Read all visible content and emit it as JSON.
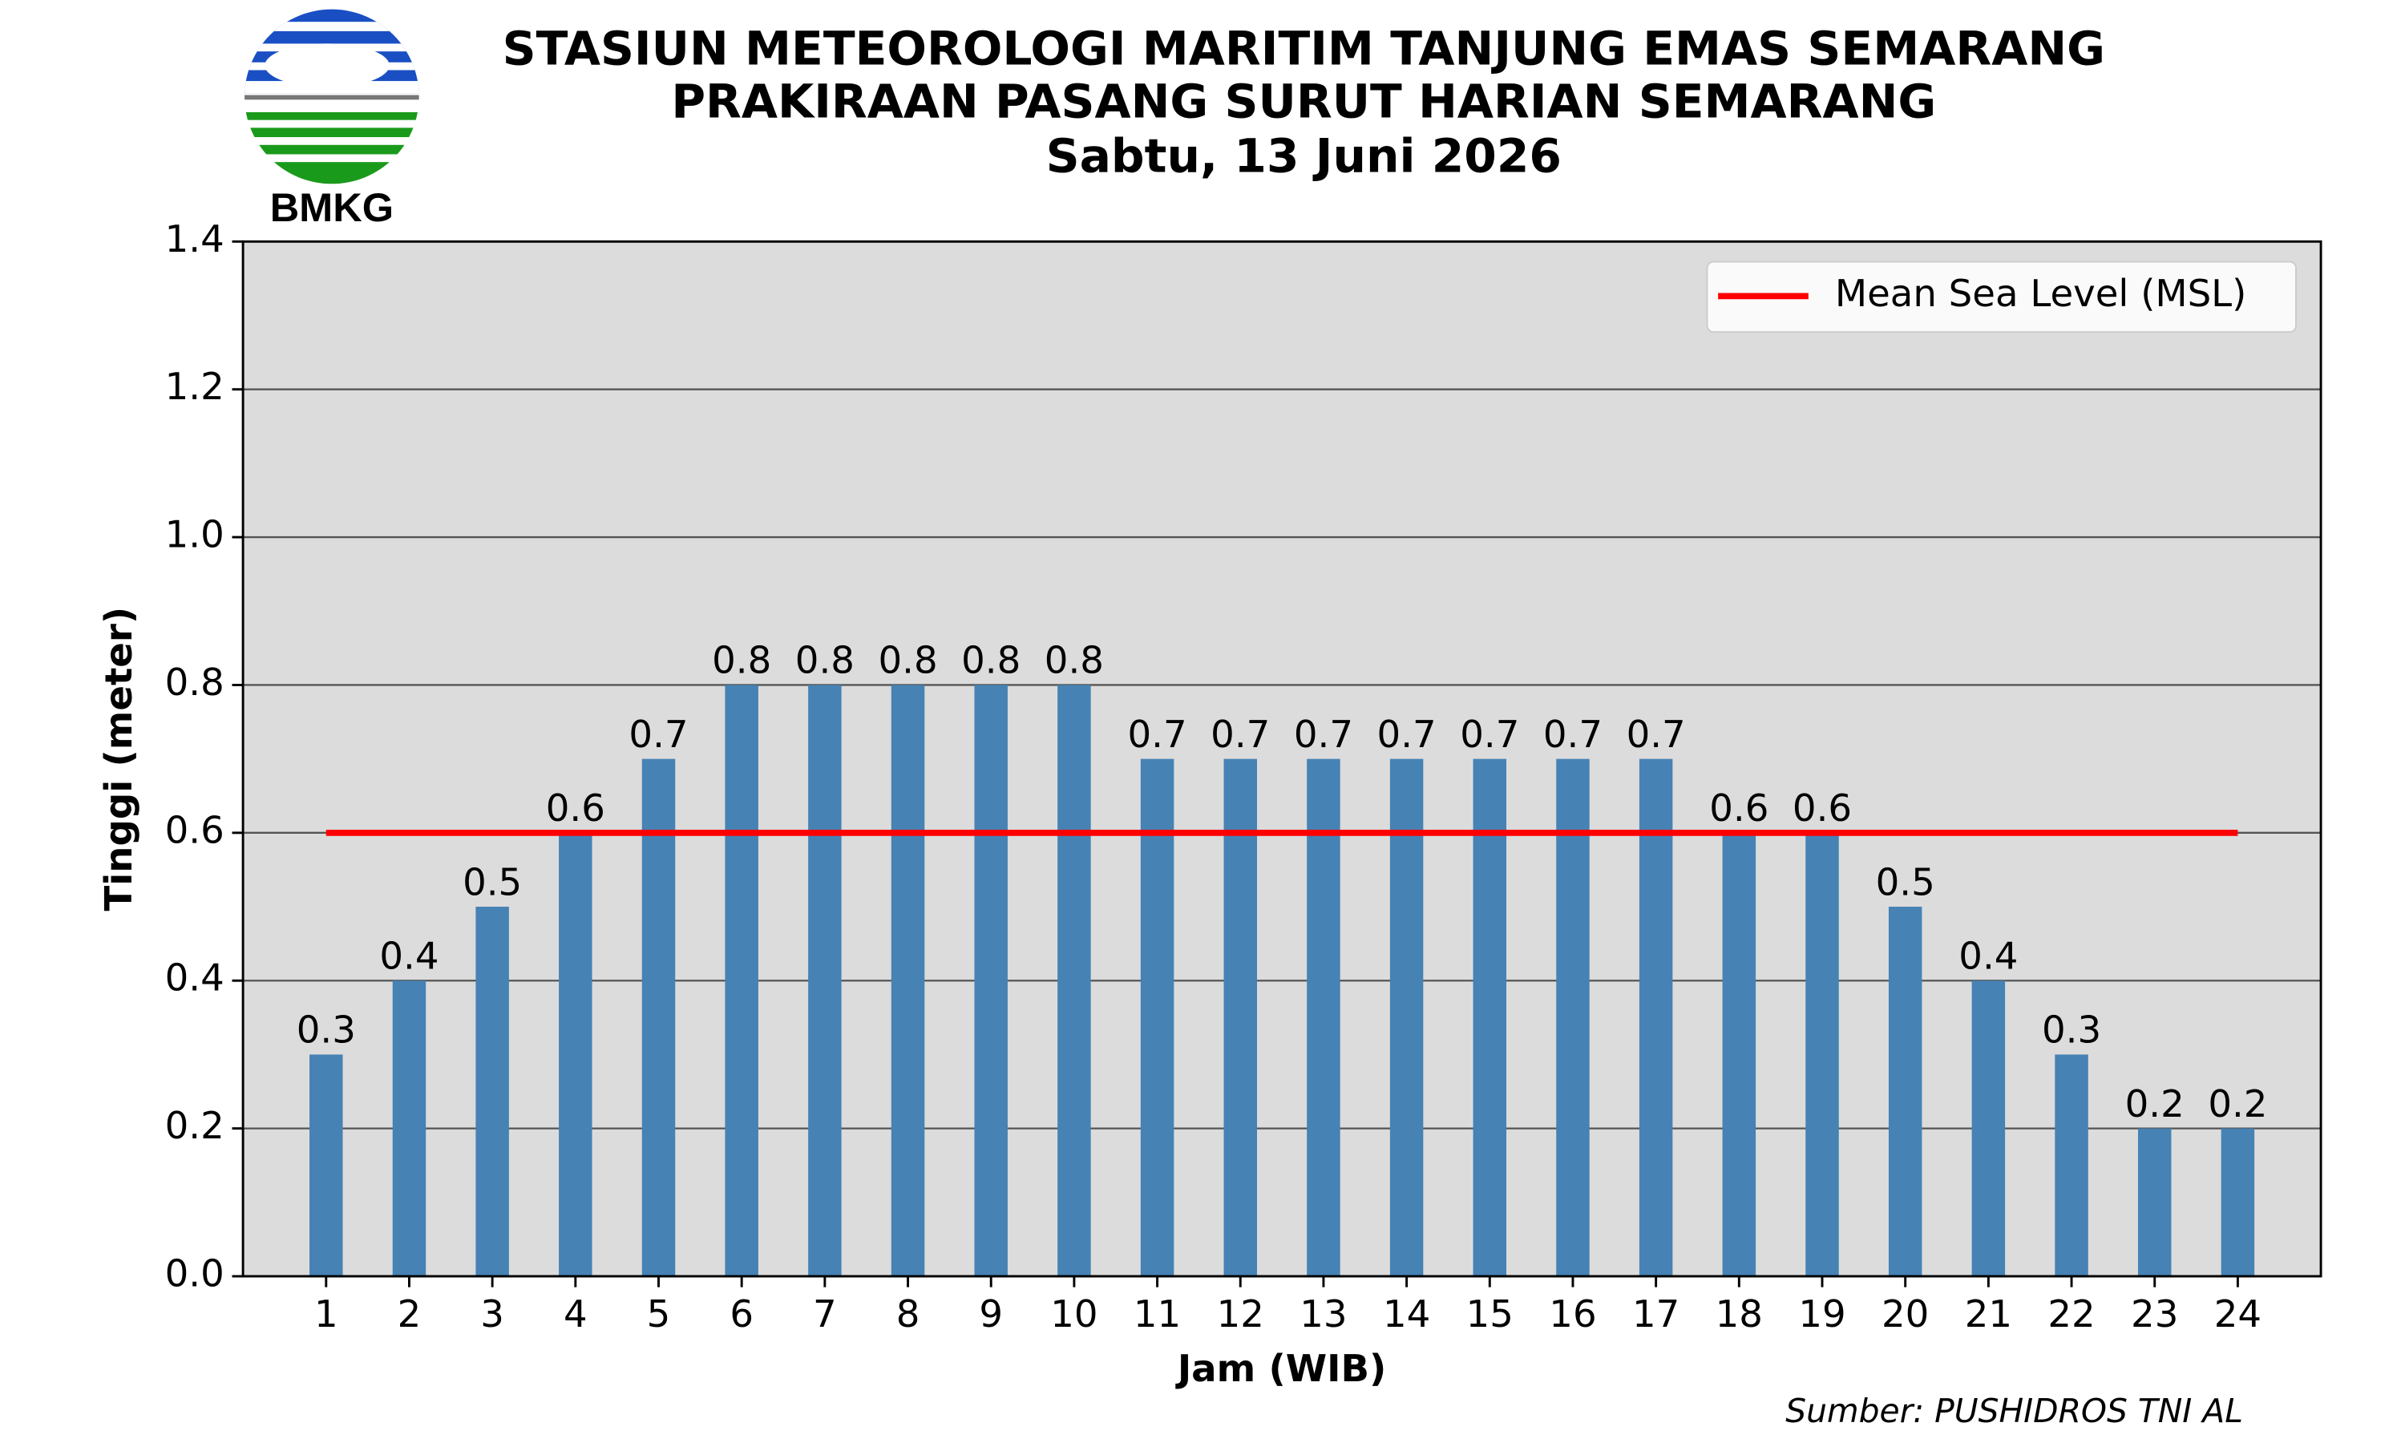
{
  "chart_data": {
    "type": "bar",
    "title": "STASIUN METEOROLOGI MARITIM TANJUNG EMAS SEMARANG",
    "subtitle": "PRAKIRAAN PASANG SURUT HARIAN SEMARANG",
    "date": "Sabtu, 13 Juni 2026",
    "logo_text": "BMKG",
    "x_label": "Jam (WIB)",
    "y_label": "Tinggi (meter)",
    "source": "Sumber: PUSHIDROS TNI AL",
    "categories": [
      "1",
      "2",
      "3",
      "4",
      "5",
      "6",
      "7",
      "8",
      "9",
      "10",
      "11",
      "12",
      "13",
      "14",
      "15",
      "16",
      "17",
      "18",
      "19",
      "20",
      "21",
      "22",
      "23",
      "24"
    ],
    "values": [
      0.3,
      0.4,
      0.5,
      0.6,
      0.7,
      0.8,
      0.8,
      0.8,
      0.8,
      0.8,
      0.7,
      0.7,
      0.7,
      0.7,
      0.7,
      0.7,
      0.7,
      0.6,
      0.6,
      0.5,
      0.4,
      0.3,
      0.2,
      0.2
    ],
    "color": "#4682b4",
    "ylim": [
      0,
      1.4
    ],
    "yticks": [
      {
        "value": 0,
        "label": "0.0"
      },
      0.2,
      0.4,
      0.6,
      0.8,
      {
        "value": 1,
        "label": "1.0"
      },
      1.2,
      1.4
    ],
    "grid": true,
    "reference_line": {
      "name": "Mean Sea Level (MSL)",
      "value": 0.6,
      "color": "#ff0000"
    },
    "legend": "upper right"
  }
}
